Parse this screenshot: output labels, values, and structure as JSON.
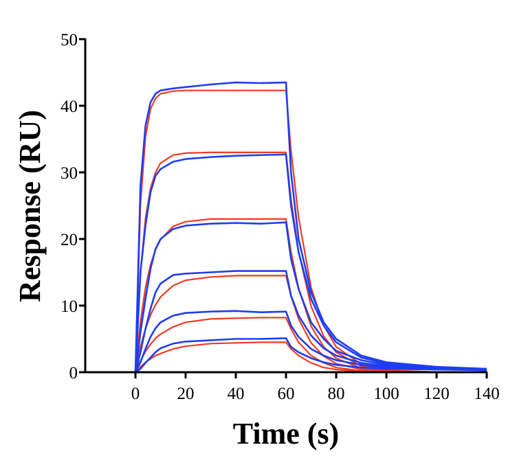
{
  "chart_data": {
    "type": "line",
    "title": "",
    "xlabel": "Time (s)",
    "ylabel": "Response (RU)",
    "xlim": [
      -20,
      140
    ],
    "ylim": [
      0,
      50
    ],
    "xticks": [
      0,
      20,
      40,
      60,
      80,
      100,
      120,
      140
    ],
    "yticks": [
      0,
      10,
      20,
      30,
      40,
      50
    ],
    "grid": false,
    "legend": "none",
    "colors": {
      "measured": "#1f3df0",
      "fit": "#f03a22",
      "axis": "#000000"
    },
    "x": [
      -20,
      -10,
      0,
      2,
      4,
      6,
      8,
      10,
      15,
      20,
      30,
      40,
      50,
      60,
      62,
      65,
      70,
      75,
      80,
      90,
      100,
      120,
      140
    ],
    "measured_series": [
      {
        "values": [
          0,
          0,
          0,
          28,
          37,
          40.5,
          41.8,
          42.3,
          42.6,
          42.8,
          43.2,
          43.5,
          43.4,
          43.5,
          30,
          20,
          12,
          7.5,
          5,
          2.5,
          1.5,
          0.8,
          0.5
        ]
      },
      {
        "values": [
          0,
          0,
          0,
          15,
          22,
          27,
          29.5,
          30.5,
          31.6,
          32,
          32.3,
          32.5,
          32.6,
          32.7,
          25,
          18,
          11,
          7,
          4.5,
          2.2,
          1.3,
          0.7,
          0.5
        ]
      },
      {
        "values": [
          0,
          0,
          0,
          6,
          11,
          15.5,
          18.5,
          20,
          21.5,
          22,
          22.3,
          22.4,
          22.3,
          22.5,
          17,
          12.5,
          7.5,
          5,
          3.2,
          1.8,
          1.1,
          0.6,
          0.4
        ]
      },
      {
        "values": [
          0,
          0,
          0,
          3,
          6.5,
          9.5,
          12,
          13.3,
          14.6,
          14.8,
          15,
          15.2,
          15.2,
          15.2,
          11.5,
          8.5,
          5.5,
          3.6,
          2.5,
          1.4,
          0.9,
          0.5,
          0.4
        ]
      },
      {
        "values": [
          0,
          0,
          0,
          1.5,
          3.5,
          5.3,
          6.6,
          7.5,
          8.5,
          8.9,
          9.1,
          9.2,
          9.0,
          9.1,
          7,
          5.3,
          3.5,
          2.5,
          1.8,
          1.1,
          0.7,
          0.5,
          0.3
        ]
      },
      {
        "values": [
          0,
          0,
          0,
          0.5,
          1.4,
          2.2,
          3,
          3.6,
          4.3,
          4.6,
          4.8,
          5,
          5,
          5.1,
          3.8,
          3,
          2.1,
          1.5,
          1.1,
          0.7,
          0.5,
          0.4,
          0.3
        ]
      }
    ],
    "fit_series": [
      {
        "values": [
          0,
          0,
          0,
          25.1,
          35.3,
          39.5,
          41.1,
          41.8,
          42.2,
          42.3,
          42.3,
          42.3,
          42.3,
          42.3,
          33.3,
          23.2,
          12.7,
          7.0,
          3.8,
          1.2,
          0.3,
          0,
          0
        ]
      },
      {
        "values": [
          0,
          0,
          0,
          14.9,
          23.1,
          27.6,
          30.0,
          31.4,
          32.6,
          32.9,
          33,
          33,
          33,
          33,
          26.0,
          18.1,
          9.9,
          5.4,
          3.0,
          0.9,
          0.3,
          0,
          0
        ]
      },
      {
        "values": [
          0,
          0,
          0,
          7.6,
          12.7,
          16.1,
          18.4,
          19.9,
          21.9,
          22.6,
          23,
          23,
          23,
          23,
          18.1,
          12.6,
          6.9,
          3.8,
          2.1,
          0.6,
          0.2,
          0,
          0
        ]
      },
      {
        "values": [
          0,
          0,
          0,
          3.8,
          6.5,
          8.6,
          10.1,
          11.3,
          13.0,
          13.8,
          14.3,
          14.5,
          14.5,
          14.5,
          11.4,
          8.0,
          4.4,
          2.4,
          1.3,
          0.4,
          0.1,
          0,
          0
        ]
      },
      {
        "values": [
          0,
          0,
          0,
          1.7,
          3.1,
          4.2,
          5.1,
          5.7,
          6.8,
          7.5,
          8.0,
          8.1,
          8.2,
          8.2,
          6.5,
          4.5,
          2.5,
          1.4,
          0.7,
          0.2,
          0.1,
          0,
          0
        ]
      },
      {
        "values": [
          0,
          0,
          0,
          0.8,
          1.5,
          2.0,
          2.5,
          2.8,
          3.5,
          3.9,
          4.3,
          4.4,
          4.5,
          4.5,
          3.5,
          2.5,
          1.4,
          0.7,
          0.4,
          0.1,
          0,
          0,
          0
        ]
      }
    ]
  }
}
